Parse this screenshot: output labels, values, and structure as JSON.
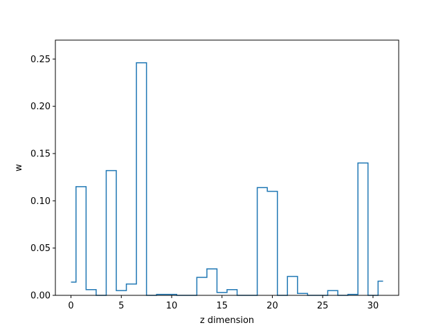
{
  "chart_data": {
    "type": "step",
    "title": "",
    "xlabel": "z dimension",
    "ylabel": "w",
    "xlim": [
      -1.55,
      32.55
    ],
    "ylim": [
      0,
      0.27
    ],
    "xticks": [
      0,
      5,
      10,
      15,
      20,
      25,
      30
    ],
    "xtick_labels": [
      "0",
      "5",
      "10",
      "15",
      "20",
      "25",
      "30"
    ],
    "yticks": [
      0.0,
      0.05,
      0.1,
      0.15,
      0.2,
      0.25
    ],
    "ytick_labels": [
      "0.00",
      "0.05",
      "0.10",
      "0.15",
      "0.20",
      "0.25"
    ],
    "grid": false,
    "step_where": "mid",
    "line_color": "#1f77b4",
    "series": [
      {
        "x": [
          0,
          1,
          2,
          3,
          4,
          5,
          6,
          7,
          8,
          9,
          10,
          11,
          12,
          13,
          14,
          15,
          16,
          17,
          18,
          19,
          20,
          21,
          22,
          23,
          24,
          25,
          26,
          27,
          28,
          29,
          30,
          31
        ],
        "values": [
          0.014,
          0.115,
          0.006,
          0.0,
          0.132,
          0.005,
          0.012,
          0.246,
          0.0,
          0.001,
          0.001,
          0.0,
          0.0,
          0.019,
          0.028,
          0.003,
          0.006,
          0.0,
          0.0,
          0.114,
          0.11,
          0.0,
          0.02,
          0.002,
          0.0,
          0.0,
          0.005,
          0.0,
          0.001,
          0.14,
          0.0,
          0.015
        ]
      }
    ]
  }
}
